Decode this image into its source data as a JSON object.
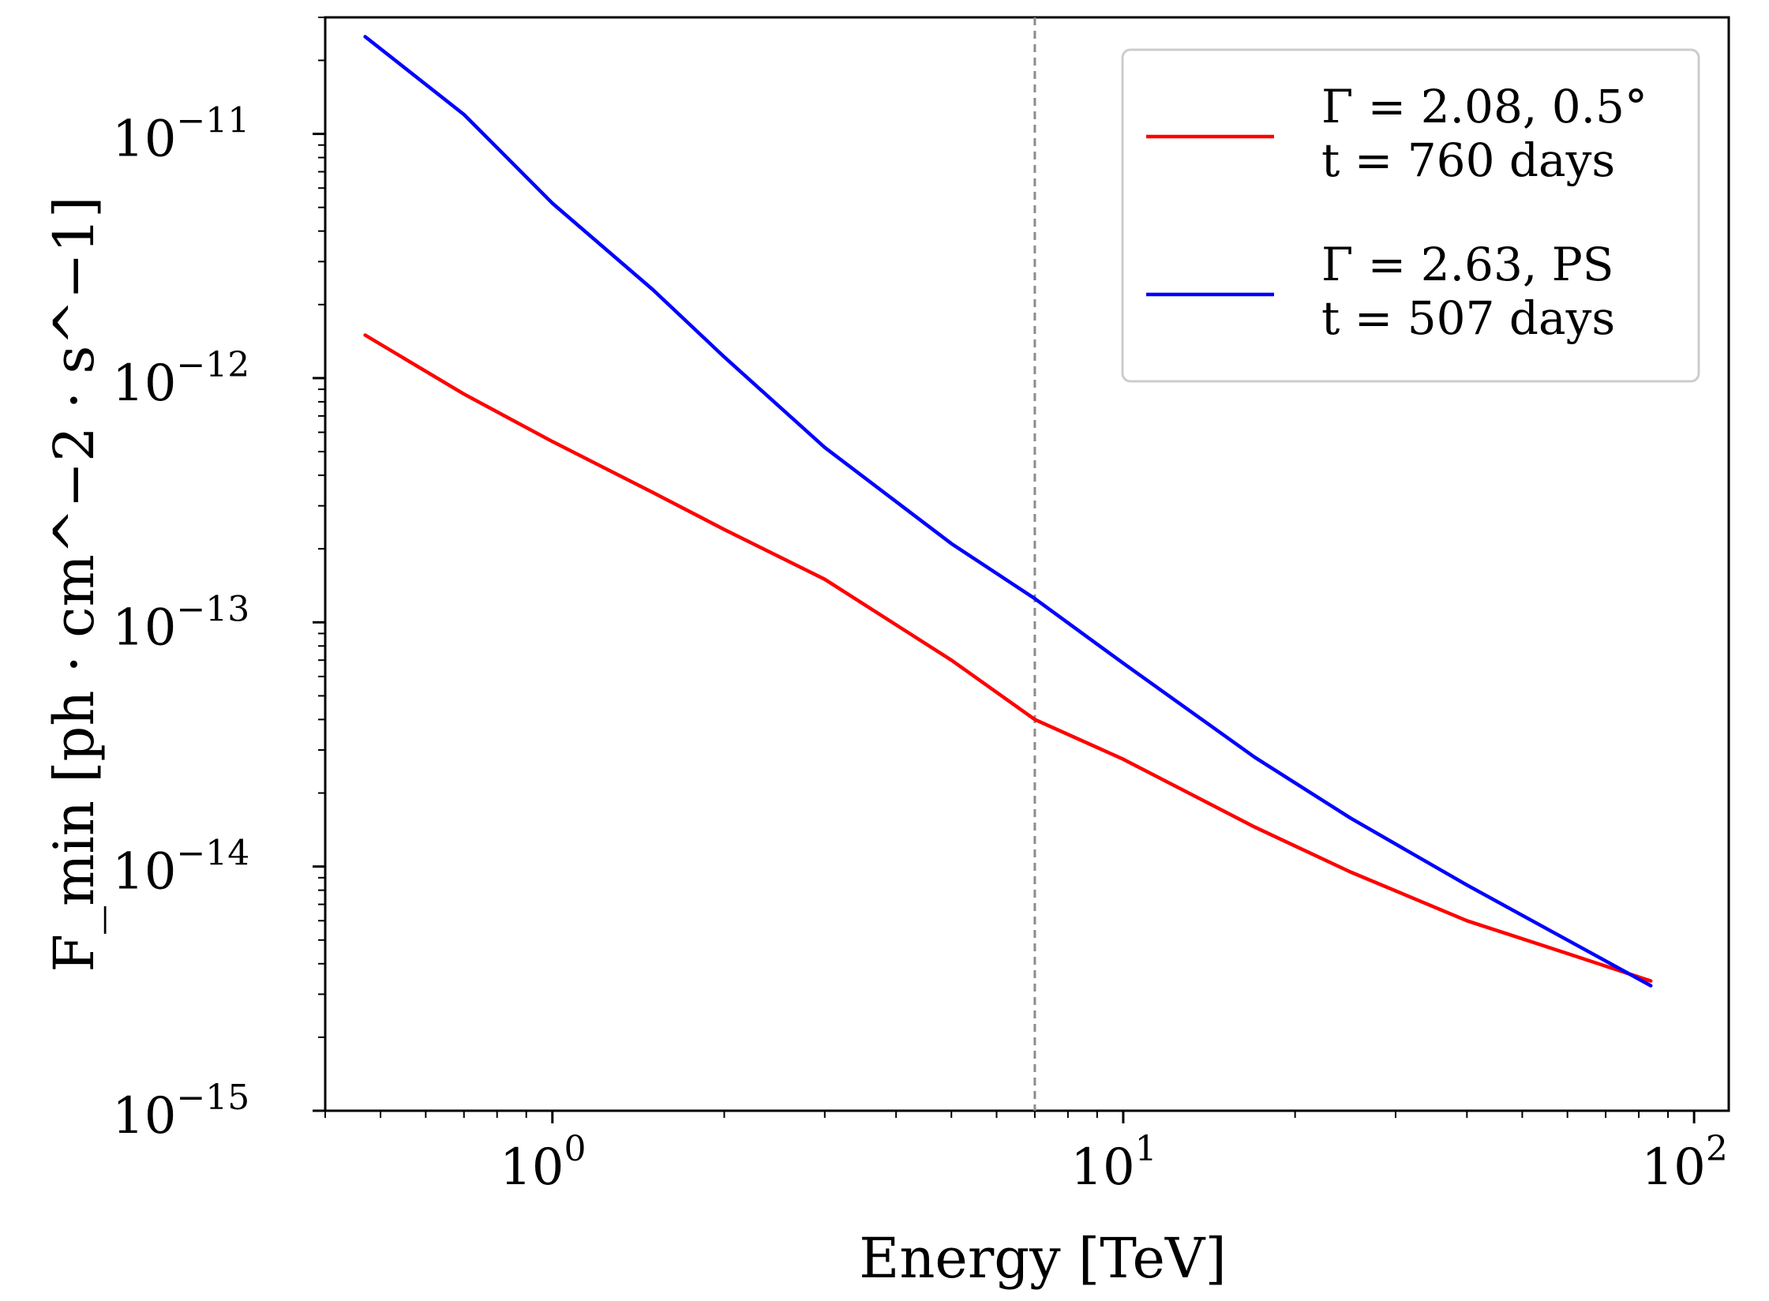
{
  "chart_data": {
    "type": "line",
    "xscale": "log",
    "yscale": "log",
    "xlabel": "Energy [TeV]",
    "ylabel": "F_min [ph · cm^−2 · s^−1]",
    "xlim": [
      0.4,
      115
    ],
    "ylim": [
      1e-15,
      3e-11
    ],
    "grid": false,
    "legend_position": "top-right",
    "reference_line": {
      "x": 7.0,
      "style": "dashed",
      "color": "#8c8c8c"
    },
    "x_ticks": [
      {
        "value": 1,
        "base": "10",
        "exp": "0"
      },
      {
        "value": 10,
        "base": "10",
        "exp": "1"
      },
      {
        "value": 100,
        "base": "10",
        "exp": "2"
      }
    ],
    "y_ticks": [
      {
        "value": 1e-15,
        "base": "10",
        "exp": "−15"
      },
      {
        "value": 1e-14,
        "base": "10",
        "exp": "−14"
      },
      {
        "value": 1e-13,
        "base": "10",
        "exp": "−13"
      },
      {
        "value": 1e-12,
        "base": "10",
        "exp": "−12"
      },
      {
        "value": 1e-11,
        "base": "10",
        "exp": "−11"
      }
    ],
    "series": [
      {
        "name": "Γ = 2.08, 0.5°",
        "legend_line1": "Γ = 2.08, 0.5°",
        "legend_line2": "t = 760 days",
        "color": "#ff0000",
        "x": [
          0.47,
          0.7,
          1.0,
          1.5,
          2.0,
          3.0,
          5.0,
          7.0,
          10.0,
          17.0,
          25.0,
          40.0,
          60.0,
          84.0
        ],
        "y": [
          1.5e-12,
          8.6e-13,
          5.5e-13,
          3.4e-13,
          2.4e-13,
          1.5e-13,
          7e-14,
          4e-14,
          2.75e-14,
          1.45e-14,
          9.5e-15,
          6e-15,
          4.4e-15,
          3.4e-15
        ]
      },
      {
        "name": "Γ = 2.63, PS",
        "legend_line1": "Γ = 2.63, PS",
        "legend_line2": "t = 507 days",
        "color": "#0000ff",
        "x": [
          0.47,
          0.7,
          1.0,
          1.5,
          2.0,
          3.0,
          5.0,
          7.0,
          10.0,
          17.0,
          25.0,
          40.0,
          60.0,
          84.0
        ],
        "y": [
          2.5e-11,
          1.2e-11,
          5.2e-12,
          2.3e-12,
          1.22e-12,
          5.2e-13,
          2.1e-13,
          1.25e-13,
          6.8e-14,
          2.8e-14,
          1.58e-14,
          8.4e-15,
          5e-15,
          3.25e-15
        ]
      }
    ]
  }
}
